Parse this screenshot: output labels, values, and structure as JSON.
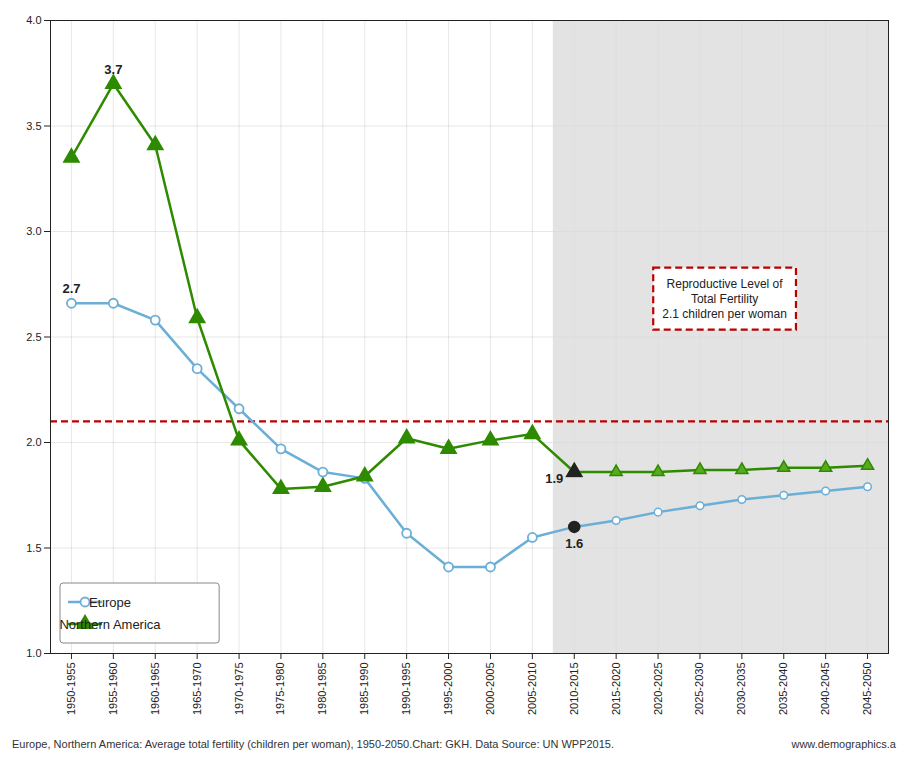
{
  "chart_data": {
    "type": "line",
    "categories": [
      "1950-1955",
      "1955-1960",
      "1960-1965",
      "1965-1970",
      "1970-1975",
      "1975-1980",
      "1980-1985",
      "1985-1990",
      "1990-1995",
      "1995-2000",
      "2000-2005",
      "2005-2010",
      "2010-2015",
      "2015-2020",
      "2020-2025",
      "2025-2030",
      "2030-2035",
      "2035-2040",
      "2040-2045",
      "2045-2050"
    ],
    "series": [
      {
        "name": "Europe",
        "color": "#6baed6",
        "marker": "open_circle",
        "values": [
          2.66,
          2.66,
          2.58,
          2.35,
          2.16,
          1.97,
          1.86,
          1.83,
          1.57,
          1.41,
          1.41,
          1.55,
          1.6,
          1.63,
          1.67,
          1.7,
          1.73,
          1.75,
          1.77,
          1.79
        ]
      },
      {
        "name": "Northern America",
        "color": "#2e8b00",
        "forecast_color": "#5aaa20",
        "marker": "triangle",
        "values": [
          3.35,
          3.7,
          3.41,
          2.59,
          2.01,
          1.78,
          1.79,
          1.84,
          2.02,
          1.97,
          2.01,
          2.04,
          1.86,
          1.86,
          1.86,
          1.87,
          1.87,
          1.88,
          1.88,
          1.89
        ]
      }
    ],
    "ylim": [
      1.0,
      4.0
    ],
    "yticks": [
      {
        "value": 1.0,
        "label": "1.0"
      },
      {
        "value": 1.5,
        "label": "1.5"
      },
      {
        "value": 2.0,
        "label": "2.0"
      },
      {
        "value": 2.5,
        "label": "2.5"
      },
      {
        "value": 3.0,
        "label": "3.0"
      },
      {
        "value": 3.5,
        "label": "3.5"
      },
      {
        "value": 4.0,
        "label": "4.0"
      }
    ],
    "grid": true,
    "legend": "lower left",
    "forecast": {
      "from": "2010-2015",
      "color": "#d9d9d9"
    },
    "reference_line": {
      "value": 2.1,
      "color": "#bb0000",
      "line_style": "dashed",
      "label": "Reproductive Level of\nTotal Fertility\n2.1 children per woman"
    },
    "annotations": [
      {
        "text": "2.7",
        "series": "Europe",
        "category": "1950-1955"
      },
      {
        "text": "3.7",
        "series": "Northern America",
        "category": "1955-1960"
      },
      {
        "text": "1.9",
        "series": "Northern America",
        "category": "2010-2015"
      },
      {
        "text": "1.6",
        "series": "Europe",
        "category": "2010-2015"
      }
    ],
    "footer_left": "Europe, Northern America: Average total fertility (children per woman), 1950-2050.Chart: GKH.  Data Source: UN WPP2015.",
    "footer_right": "www.demographics.a"
  }
}
